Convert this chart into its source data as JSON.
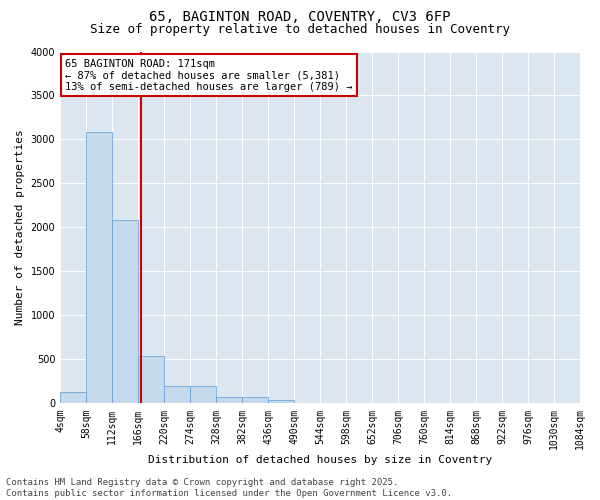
{
  "title_line1": "65, BAGINTON ROAD, COVENTRY, CV3 6FP",
  "title_line2": "Size of property relative to detached houses in Coventry",
  "xlabel": "Distribution of detached houses by size in Coventry",
  "ylabel": "Number of detached properties",
  "bar_color": "#c5d9ed",
  "bar_edge_color": "#5b9bd5",
  "background_color": "#dce6f1",
  "annotation_text": "65 BAGINTON ROAD: 171sqm\n← 87% of detached houses are smaller (5,381)\n13% of semi-detached houses are larger (789) →",
  "annotation_box_color": "#ffffff",
  "annotation_box_edge": "#cc0000",
  "vline_x": 171,
  "vline_color": "#cc0000",
  "footer_text": "Contains HM Land Registry data © Crown copyright and database right 2025.\nContains public sector information licensed under the Open Government Licence v3.0.",
  "bins": [
    4,
    58,
    112,
    166,
    220,
    274,
    328,
    382,
    436,
    490,
    544,
    598,
    652,
    706,
    760,
    814,
    868,
    922,
    976,
    1030,
    1084
  ],
  "bar_heights": [
    130,
    3080,
    2090,
    540,
    195,
    195,
    75,
    75,
    35,
    5,
    0,
    0,
    0,
    0,
    0,
    0,
    0,
    0,
    0,
    0
  ],
  "ylim": [
    0,
    4000
  ],
  "yticks": [
    0,
    500,
    1000,
    1500,
    2000,
    2500,
    3000,
    3500,
    4000
  ],
  "grid_color": "#ffffff",
  "title_fontsize": 10,
  "subtitle_fontsize": 9,
  "axis_label_fontsize": 8,
  "tick_fontsize": 7,
  "footer_fontsize": 6.5,
  "ann_fontsize": 7.5
}
